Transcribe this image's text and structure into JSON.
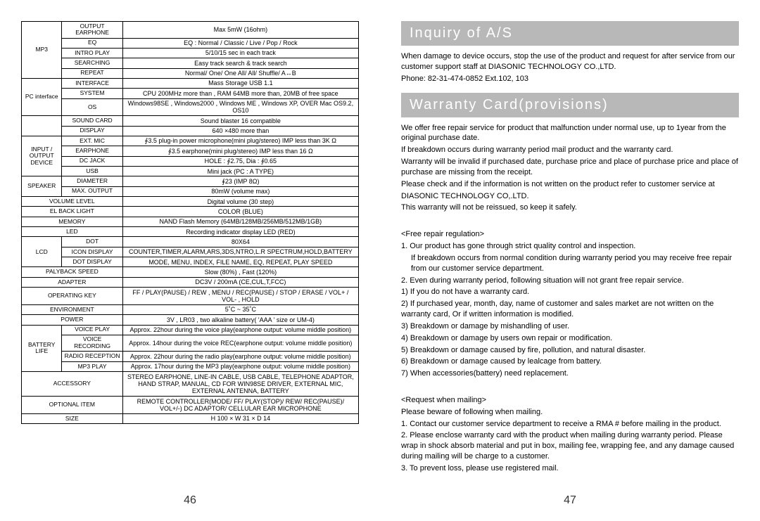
{
  "left": {
    "page_num": "46",
    "rows": [
      {
        "a": "MP3",
        "aRowspan": 5,
        "b": "OUTPUT EARPHONE",
        "c": "Max 5mW (16ohm)"
      },
      {
        "b": "EQ",
        "c": "EQ : Normal / Classic / Live / Pop / Rock"
      },
      {
        "b": "INTRO PLAY",
        "c": "5/10/15 sec in each track"
      },
      {
        "b": "SEARCHING",
        "c": "Easy track search & track search"
      },
      {
        "b": "REPEAT",
        "c": "Normal/ One/ One All/ All/ Shuffle/ A↔B"
      },
      {
        "a": "PC interface",
        "aRowspan": 3,
        "b": "INTERFACE",
        "c": "Mass Storage USB 1.1"
      },
      {
        "b": "SYSTEM",
        "c": "CPU 200MHz more than , RAM 64MB more than, 20MB of free space"
      },
      {
        "b": "OS",
        "c": "Windows98SE , Windows2000 , Windows ME , Windows XP, OVER Mac OS9.2, OS10"
      },
      {
        "a": "",
        "aRowspan": 2,
        "b": "SOUND CARD",
        "c": "Sound blaster 16 compatible"
      },
      {
        "b": "DISPLAY",
        "c": "640 ×480 more than"
      },
      {
        "a": "INPUT / OUTPUT DEVICE",
        "aRowspan": 4,
        "b": "EXT. MIC",
        "c": "∮3.5 plug-in power microphone(mini plug/stereo) IMP less than 3K Ω"
      },
      {
        "b": "EARPHONE",
        "c": "∮3.5 earphone(mini plug/stereo) IMP less than 16 Ω"
      },
      {
        "b": "DC JACK",
        "c": "HOLE : ∮2.75, Dia : ∮0.65"
      },
      {
        "b": "USB",
        "c": "Mini jack (PC : A TYPE)"
      },
      {
        "a": "SPEAKER",
        "aRowspan": 2,
        "b": "DIAMETER",
        "c": "∮23 (IMP 8Ω)"
      },
      {
        "b": "MAX. OUTPUT",
        "c": "80mW (volume max)"
      },
      {
        "ab": "VOLUME LEVEL",
        "c": "Digital volume (30 step)"
      },
      {
        "ab": "EL BACK LIGHT",
        "c": "COLOR (BLUE)"
      },
      {
        "ab": "MEMORY",
        "c": "NAND Flash Memory (64MB/128MB/256MB/512MB/1GB)"
      },
      {
        "ab": "LED",
        "c": "Recording indicator display LED (RED)"
      },
      {
        "a": "LCD",
        "aRowspan": 3,
        "b": "DOT",
        "c": "80X64"
      },
      {
        "b": "ICON DISPLAY",
        "c": "COUNTER,TIMER,ALARM,ARS,3DS,NTRO,L.R SPECTRUM,HOLD,BATTERY"
      },
      {
        "b": "DOT DISPLAY",
        "c": "MODE, MENU, INDEX, FILE NAME, EQ, REPEAT, PLAY SPEED"
      },
      {
        "ab": "PALYBACK SPEED",
        "c": "Slow (80%) , Fast (120%)"
      },
      {
        "ab": "ADAPTER",
        "c": "DC3V / 200mA (CE,CUL,T,FCC)"
      },
      {
        "ab": "OPERATING KEY",
        "c": "FF / PLAY(PAUSE) / REW , MENU / REC(PAUSE) / STOP / ERASE / VOL+ / VOL- , HOLD"
      },
      {
        "ab": "ENVIRONMENT",
        "c": "5˚C ~ 35˚C"
      },
      {
        "ab": "POWER",
        "c": "3V , LR03 , two alkaline battery( 'AAA ' size or UM-4)"
      },
      {
        "a": "BATTERY LIFE",
        "aRowspan": 4,
        "b": "VOICE PLAY",
        "c": "Approx. 22hour during the voice play(earphone output: volume middle position)"
      },
      {
        "b": "VOICE RECORDING",
        "c": "Approx. 14hour during the voice REC(earphone output: volume middle position)"
      },
      {
        "b": "RADIO RECEPTION",
        "c": "Approx. 22hour during the radio play(earphone output: volume middle position)"
      },
      {
        "b": "MP3 PLAY",
        "c": "Approx. 17hour during the MP3 play(earphone output: volume middle position)"
      },
      {
        "ab": "ACCESSORY",
        "c": "STEREO EARPHONE, LINE-IN CABLE, USB CABLE, TELEPHONE ADAPTOR, HAND STRAP, MANUAL, CD FOR WIN98SE DRIVER, EXTERNAL MIC, EXTERNAL ANTENNA, BATTERY"
      },
      {
        "ab": "OPTIONAL ITEM",
        "c": "REMOTE CONTROLLER(MODE/ FF/ PLAY(STOP)/ REW/ REC(PAUSE)/ VOL+/-) DC ADAPTOR/ CELLULAR EAR MICROPHONE"
      },
      {
        "ab": "SIZE",
        "c": "H 100 × W 31 × D 14"
      }
    ]
  },
  "right": {
    "page_num": "47",
    "section1_title": "Inquiry of A/S",
    "section1_lines": [
      "When damage to device occurs, stop the use of the product and request for after service from our customer support staff at DIASONIC TECHNOLOGY CO.,LTD.",
      "Phone: 82-31-474-0852 Ext.102, 103"
    ],
    "section2_title": "Warranty Card(provisions)",
    "section2_blocks": [
      [
        "We offer free repair service for product that malfunction under normal use, up to 1year from the original purchase date.",
        "If breakdown occurs during warranty period mail product and the warranty card.",
        "Warranty will be invalid if purchased date, purchase price and place of purchase price and place of purchase are missing from the receipt.",
        "Please check and if the information is not written on the product refer to customer service at",
        "DIASONIC TECHNOLOGY CO,.LTD.",
        "This warranty will not be reissued, so keep it safely."
      ],
      [
        "<Free repair regulation>",
        "1. Our product has gone through strict quality control and inspection.",
        "    If breakdown occurs from normal condition during warranty period you may receive free repair from our customer service department.",
        "2. Even during warranty period, following situation will not grant free repair service.",
        "1) If you do not have a warranty card.",
        "2) If purchased year, month, day, name of customer and sales market are not written on the warranty card, Or if written information is modified.",
        "3) Breakdown or damage by mishandling of user.",
        "4) Breakdown or damage by users own repair or modification.",
        "5) Breakdown or damage caused by fire, pollution, and natural disaster.",
        "6) Breakdown or damage caused by lealcage from battery.",
        "7) When accessories(battery) need replacement."
      ],
      [
        "<Request when mailing>",
        "Please beware of following when mailing.",
        "1. Contact our customer service department to receive a RMA # before mailing in the product.",
        "2. Please enclose warranty card with the product when mailing during warranty period. Please wrap in shock absorb material and put in box, mailing fee, wrapping fee, and any damage caused during mailing will be charge to a customer.",
        "3. To prevent loss, please use registered mail."
      ]
    ]
  }
}
